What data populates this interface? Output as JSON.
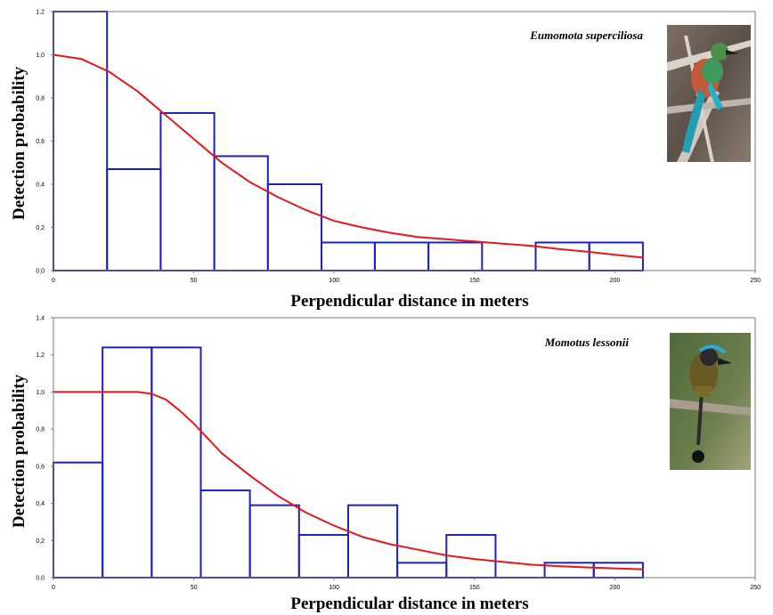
{
  "chart_data": [
    {
      "type": "histogram-with-curve",
      "species": "Eumomota superciliosa",
      "xlabel": "Perpendicular distance in meters",
      "ylabel": "Detection probability",
      "xlim": [
        0,
        250
      ],
      "ylim": [
        0,
        1.2
      ],
      "xticks": [
        {
          "v": 0,
          "t": "0"
        },
        {
          "v": 50,
          "t": "50"
        },
        {
          "v": 100,
          "t": "100"
        },
        {
          "v": 150,
          "t": "150"
        },
        {
          "v": 200,
          "t": "200"
        },
        {
          "v": 250,
          "t": "250"
        }
      ],
      "yticks": [
        {
          "v": 0,
          "t": "0,0"
        },
        {
          "v": 0.2,
          "t": "0,2"
        },
        {
          "v": 0.4,
          "t": "0,4"
        },
        {
          "v": 0.6,
          "t": "0,6"
        },
        {
          "v": 0.8,
          "t": "0,8"
        },
        {
          "v": 1.0,
          "t": "1,0"
        },
        {
          "v": 1.2,
          "t": "1,2"
        }
      ],
      "bars": [
        {
          "x0": 0,
          "x1": 19.1,
          "value": 1.2
        },
        {
          "x0": 19.1,
          "x1": 38.2,
          "value": 0.47
        },
        {
          "x0": 38.2,
          "x1": 57.3,
          "value": 0.73
        },
        {
          "x0": 57.3,
          "x1": 76.4,
          "value": 0.53
        },
        {
          "x0": 76.4,
          "x1": 95.5,
          "value": 0.4
        },
        {
          "x0": 95.5,
          "x1": 114.5,
          "value": 0.13
        },
        {
          "x0": 114.5,
          "x1": 133.6,
          "value": 0.13
        },
        {
          "x0": 133.6,
          "x1": 152.7,
          "value": 0.13
        },
        {
          "x0": 152.7,
          "x1": 171.8,
          "value": 0.0
        },
        {
          "x0": 171.8,
          "x1": 190.9,
          "value": 0.13
        },
        {
          "x0": 190.9,
          "x1": 210,
          "value": 0.13
        }
      ],
      "curve": {
        "x": [
          0,
          10,
          20,
          30,
          40,
          50,
          60,
          70,
          80,
          90,
          100,
          110,
          120,
          130,
          140,
          150,
          160,
          170,
          180,
          190,
          200,
          210
        ],
        "y": [
          1.0,
          0.98,
          0.92,
          0.83,
          0.72,
          0.61,
          0.5,
          0.41,
          0.34,
          0.28,
          0.23,
          0.2,
          0.175,
          0.155,
          0.145,
          0.135,
          0.125,
          0.115,
          0.1,
          0.088,
          0.073,
          0.06
        ]
      },
      "photo_icon": "turquoise-browed-motmot-photo"
    },
    {
      "type": "histogram-with-curve",
      "species": "Momotus lessonii",
      "xlabel": "Perpendicular distance in meters",
      "ylabel": "Detection probability",
      "xlim": [
        0,
        250
      ],
      "ylim": [
        0,
        1.4
      ],
      "xticks": [
        {
          "v": 0,
          "t": "0"
        },
        {
          "v": 50,
          "t": "50"
        },
        {
          "v": 100,
          "t": "100"
        },
        {
          "v": 150,
          "t": "150"
        },
        {
          "v": 200,
          "t": "200"
        },
        {
          "v": 250,
          "t": "250"
        }
      ],
      "yticks": [
        {
          "v": 0,
          "t": "0,0"
        },
        {
          "v": 0.2,
          "t": "0,2"
        },
        {
          "v": 0.4,
          "t": "0,4"
        },
        {
          "v": 0.6,
          "t": "0,6"
        },
        {
          "v": 0.8,
          "t": "0,8"
        },
        {
          "v": 1.0,
          "t": "1,0"
        },
        {
          "v": 1.2,
          "t": "1,2"
        },
        {
          "v": 1.4,
          "t": "1,4"
        }
      ],
      "bars": [
        {
          "x0": 0,
          "x1": 17.5,
          "value": 0.62
        },
        {
          "x0": 17.5,
          "x1": 35,
          "value": 1.24
        },
        {
          "x0": 35,
          "x1": 52.5,
          "value": 1.24
        },
        {
          "x0": 52.5,
          "x1": 70,
          "value": 0.47
        },
        {
          "x0": 70,
          "x1": 87.5,
          "value": 0.39
        },
        {
          "x0": 87.5,
          "x1": 105,
          "value": 0.23
        },
        {
          "x0": 105,
          "x1": 122.5,
          "value": 0.39
        },
        {
          "x0": 122.5,
          "x1": 140,
          "value": 0.08
        },
        {
          "x0": 140,
          "x1": 157.5,
          "value": 0.23
        },
        {
          "x0": 157.5,
          "x1": 175,
          "value": 0.0
        },
        {
          "x0": 175,
          "x1": 192.5,
          "value": 0.08
        },
        {
          "x0": 192.5,
          "x1": 210,
          "value": 0.08
        }
      ],
      "curve": {
        "x": [
          0,
          10,
          20,
          30,
          35,
          40,
          45,
          50,
          60,
          70,
          80,
          90,
          100,
          110,
          120,
          130,
          140,
          150,
          160,
          170,
          180,
          190,
          200,
          210
        ],
        "y": [
          1.0,
          1.0,
          1.0,
          1.0,
          0.99,
          0.96,
          0.9,
          0.83,
          0.67,
          0.55,
          0.44,
          0.35,
          0.28,
          0.22,
          0.18,
          0.15,
          0.12,
          0.1,
          0.085,
          0.07,
          0.062,
          0.055,
          0.05,
          0.045
        ]
      },
      "photo_icon": "blue-diademed-motmot-photo"
    }
  ],
  "colors": {
    "bars": "#1f22b8",
    "curve": "#e8161b",
    "axis": "#7a7a7a"
  }
}
